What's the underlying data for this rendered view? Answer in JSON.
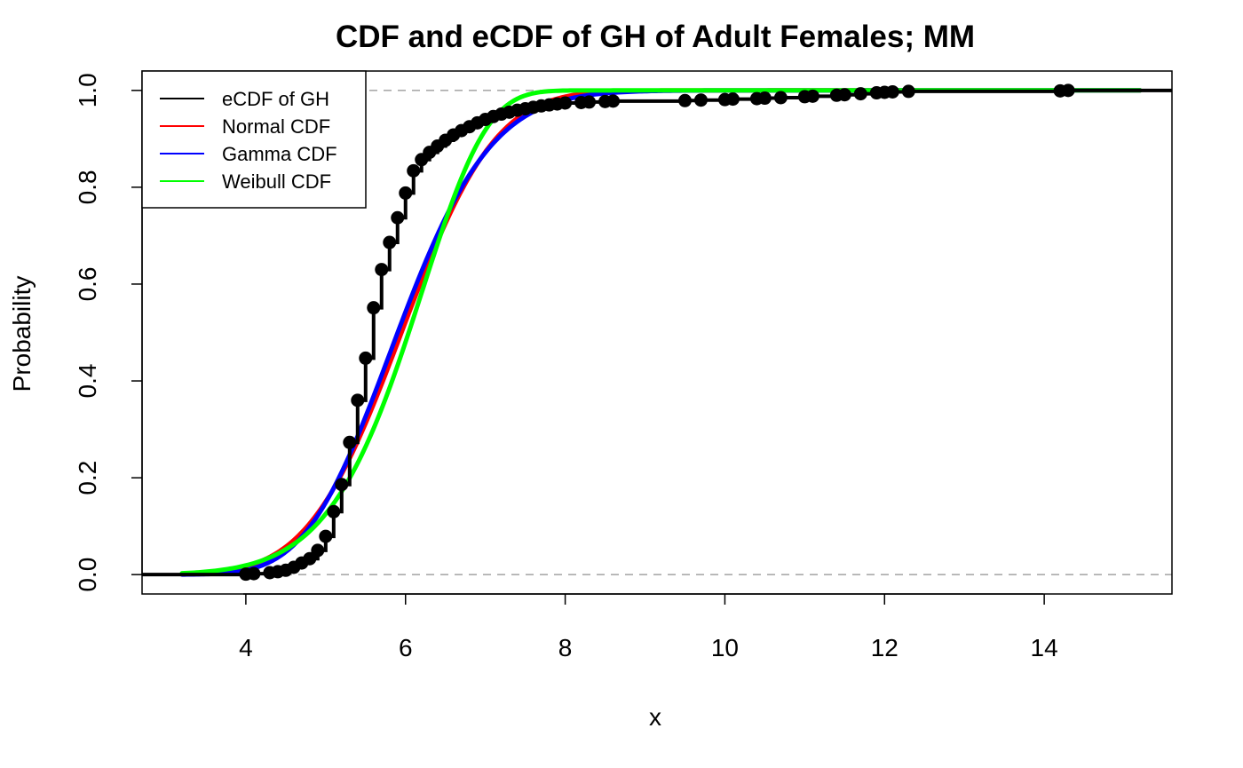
{
  "chart_data": {
    "type": "line",
    "title": "CDF and eCDF of GH of Adult Females; MM",
    "xlabel": "x",
    "ylabel": "Probability",
    "xlim": [
      2.7,
      15.6
    ],
    "ylim": [
      -0.04,
      1.04
    ],
    "x_ticks": [
      4,
      6,
      8,
      10,
      12,
      14
    ],
    "x_tick_labels": [
      "4",
      "6",
      "8",
      "10",
      "12",
      "14"
    ],
    "y_ticks": [
      0.0,
      0.2,
      0.4,
      0.6,
      0.8,
      1.0
    ],
    "y_tick_labels": [
      "0.0",
      "0.2",
      "0.4",
      "0.6",
      "0.8",
      "1.0"
    ],
    "reference_lines": [
      0,
      1
    ],
    "grid": false,
    "legend_position": "top-left",
    "series": [
      {
        "name": "eCDF of GH",
        "kind": "ecdf",
        "color": "#000000",
        "x": [
          4.0,
          4.1,
          4.3,
          4.4,
          4.5,
          4.6,
          4.7,
          4.8,
          4.9,
          5.0,
          5.1,
          5.2,
          5.3,
          5.4,
          5.5,
          5.6,
          5.7,
          5.8,
          5.9,
          6.0,
          6.1,
          6.2,
          6.3,
          6.4,
          6.5,
          6.6,
          6.7,
          6.8,
          6.9,
          7.0,
          7.1,
          7.2,
          7.3,
          7.4,
          7.5,
          7.6,
          7.7,
          7.8,
          7.9,
          8.0,
          8.2,
          8.3,
          8.5,
          8.6,
          9.5,
          9.7,
          10.0,
          10.1,
          10.4,
          10.5,
          10.7,
          11.0,
          11.1,
          11.4,
          11.5,
          11.7,
          11.9,
          12.0,
          12.1,
          12.3,
          14.2,
          14.3
        ],
        "y": [
          0.001,
          0.002,
          0.004,
          0.006,
          0.009,
          0.015,
          0.024,
          0.033,
          0.05,
          0.079,
          0.13,
          0.186,
          0.273,
          0.36,
          0.447,
          0.551,
          0.63,
          0.686,
          0.737,
          0.788,
          0.834,
          0.857,
          0.872,
          0.885,
          0.897,
          0.908,
          0.917,
          0.925,
          0.933,
          0.94,
          0.946,
          0.951,
          0.955,
          0.959,
          0.962,
          0.965,
          0.968,
          0.97,
          0.972,
          0.974,
          0.975,
          0.976,
          0.977,
          0.978,
          0.979,
          0.98,
          0.981,
          0.982,
          0.983,
          0.984,
          0.985,
          0.987,
          0.988,
          0.99,
          0.991,
          0.993,
          0.995,
          0.996,
          0.997,
          0.998,
          0.999,
          1.0
        ]
      },
      {
        "name": "Normal CDF",
        "kind": "normal",
        "mean": 5.95,
        "sd": 0.92,
        "color": "#ff0000"
      },
      {
        "name": "Gamma CDF",
        "kind": "gamma",
        "shape": 42.0,
        "rate": 7.06,
        "color": "#0000ff"
      },
      {
        "name": "Weibull CDF",
        "kind": "weibull",
        "shape": 8.7,
        "scale": 6.3,
        "color": "#00ff00"
      }
    ],
    "curve_x_range": [
      3.2,
      15.2
    ]
  }
}
